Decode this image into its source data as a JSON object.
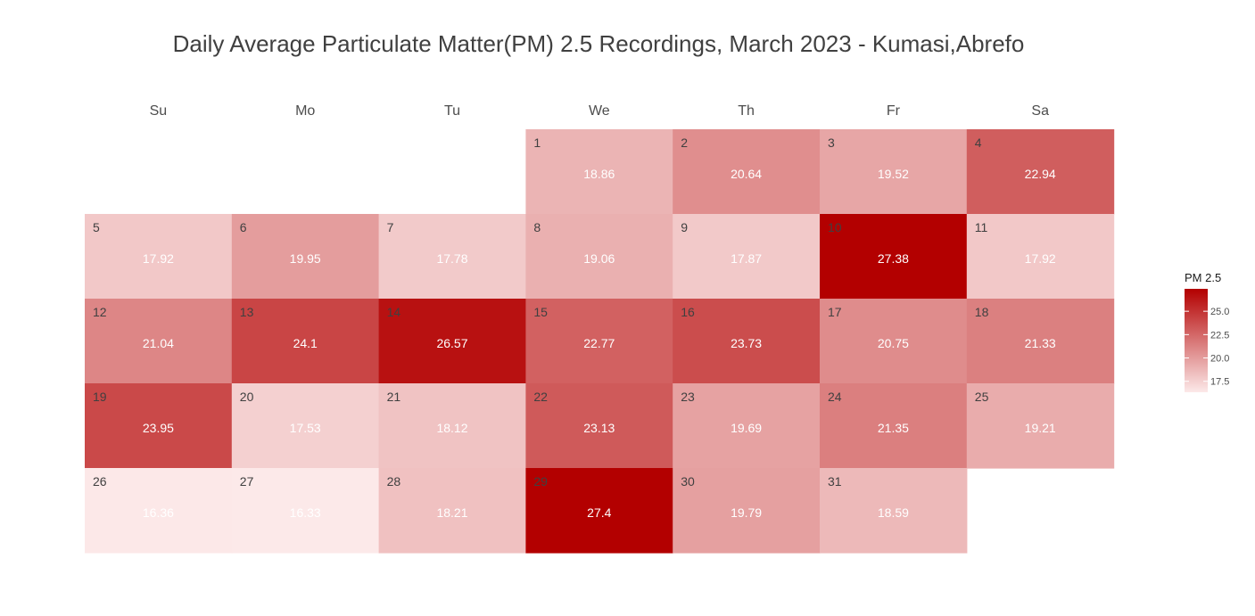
{
  "chart_data": {
    "type": "heatmap",
    "subtype": "calendar",
    "title": "Daily Average Particulate Matter(PM) 2.5 Recordings, March 2023 - Kumasi,Abrefo",
    "weekdays": [
      "Su",
      "Mo",
      "Tu",
      "We",
      "Th",
      "Fr",
      "Sa"
    ],
    "first_weekday_index": 3,
    "days": [
      {
        "date": 1,
        "value": 18.86
      },
      {
        "date": 2,
        "value": 20.64
      },
      {
        "date": 3,
        "value": 19.52
      },
      {
        "date": 4,
        "value": 22.94
      },
      {
        "date": 5,
        "value": 17.92
      },
      {
        "date": 6,
        "value": 19.95
      },
      {
        "date": 7,
        "value": 17.78
      },
      {
        "date": 8,
        "value": 19.06
      },
      {
        "date": 9,
        "value": 17.87
      },
      {
        "date": 10,
        "value": 27.38
      },
      {
        "date": 11,
        "value": 17.92
      },
      {
        "date": 12,
        "value": 21.04
      },
      {
        "date": 13,
        "value": 24.1
      },
      {
        "date": 14,
        "value": 26.57
      },
      {
        "date": 15,
        "value": 22.77
      },
      {
        "date": 16,
        "value": 23.73
      },
      {
        "date": 17,
        "value": 20.75
      },
      {
        "date": 18,
        "value": 21.33
      },
      {
        "date": 19,
        "value": 23.95
      },
      {
        "date": 20,
        "value": 17.53
      },
      {
        "date": 21,
        "value": 18.12
      },
      {
        "date": 22,
        "value": 23.13
      },
      {
        "date": 23,
        "value": 19.69
      },
      {
        "date": 24,
        "value": 21.35
      },
      {
        "date": 25,
        "value": 19.21
      },
      {
        "date": 26,
        "value": 16.36
      },
      {
        "date": 27,
        "value": 16.33
      },
      {
        "date": 28,
        "value": 18.21
      },
      {
        "date": 29,
        "value": 27.4
      },
      {
        "date": 30,
        "value": 19.79
      },
      {
        "date": 31,
        "value": 18.59
      }
    ],
    "legend": {
      "title": "PM 2.5",
      "ticks": [
        "25.0",
        "22.5",
        "20.0",
        "17.5"
      ],
      "tick_values": [
        25.0,
        22.5,
        20.0,
        17.5
      ],
      "placement": "right",
      "range": [
        16.33,
        27.4
      ]
    },
    "colors": {
      "low": "#fce9e9",
      "high": "#b30000"
    }
  }
}
